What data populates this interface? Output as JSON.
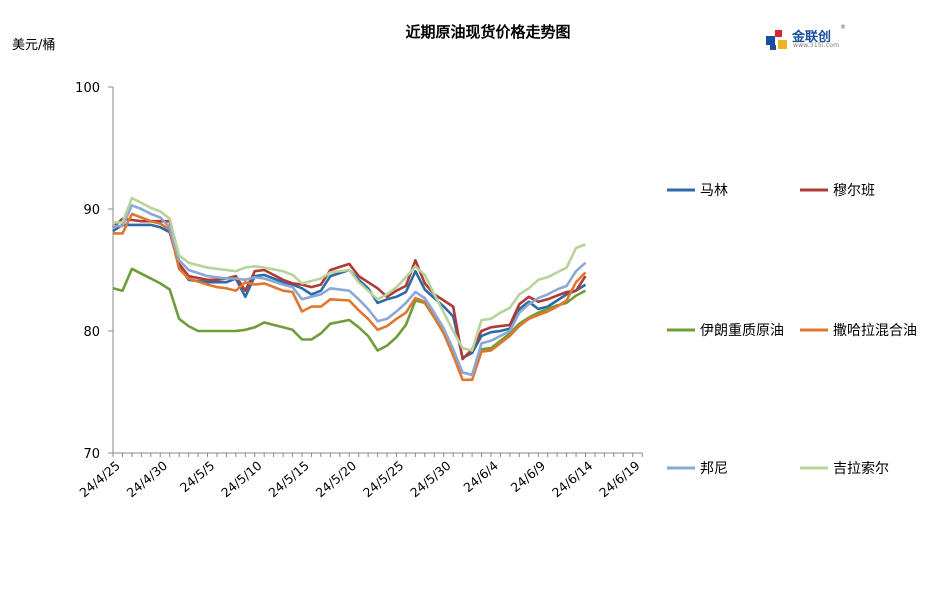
{
  "header": {
    "title": "近期原油现货价格走势图",
    "unit": "美元/桶"
  },
  "logo": {
    "name": "金联创",
    "sub": "www.315i.com",
    "reg": "®",
    "colors": {
      "primary": "#1a4f9c",
      "accent_red": "#d9232d",
      "accent_yellow": "#f0b323"
    }
  },
  "chart_data": {
    "type": "line",
    "ylim": [
      70,
      100
    ],
    "yticks": [
      70,
      80,
      90,
      100
    ],
    "grid": false,
    "legend_position": "right",
    "x_tick_labels": [
      "24/4/25",
      "24/4/30",
      "24/5/5",
      "24/5/10",
      "24/5/15",
      "24/5/20",
      "24/5/25",
      "24/5/30",
      "24/6/4",
      "24/6/9",
      "24/6/14",
      "24/6/19"
    ],
    "x_range_days": [
      0,
      56
    ],
    "series": [
      {
        "name": "马林",
        "color": "#2e6aa5",
        "points": [
          [
            0,
            88.2
          ],
          [
            1,
            88.7
          ],
          [
            3,
            88.7
          ],
          [
            4,
            88.7
          ],
          [
            5,
            88.5
          ],
          [
            6,
            88.1
          ],
          [
            7,
            85.3
          ],
          [
            8,
            84.2
          ],
          [
            10,
            84.0
          ],
          [
            11,
            84.0
          ],
          [
            12,
            84.0
          ],
          [
            13,
            84.3
          ],
          [
            14,
            82.8
          ],
          [
            15,
            84.5
          ],
          [
            16,
            84.6
          ],
          [
            18,
            84.0
          ],
          [
            19,
            83.8
          ],
          [
            20,
            83.5
          ],
          [
            21,
            83.0
          ],
          [
            22,
            83.3
          ],
          [
            23,
            84.5
          ],
          [
            25,
            85.0
          ],
          [
            26,
            84.2
          ],
          [
            27,
            83.5
          ],
          [
            28,
            82.3
          ],
          [
            29,
            82.6
          ],
          [
            30,
            82.8
          ],
          [
            31,
            83.2
          ],
          [
            32,
            84.9
          ],
          [
            33,
            83.4
          ],
          [
            34,
            82.7
          ],
          [
            35,
            82.0
          ],
          [
            36,
            81.2
          ],
          [
            37,
            77.8
          ],
          [
            38,
            78.2
          ],
          [
            39,
            79.6
          ],
          [
            40,
            79.9
          ],
          [
            41,
            80.0
          ],
          [
            42,
            80.2
          ],
          [
            43,
            81.8
          ],
          [
            44,
            82.4
          ],
          [
            45,
            81.8
          ],
          [
            46,
            82.0
          ],
          [
            47,
            82.5
          ],
          [
            48,
            83.0
          ],
          [
            49,
            83.3
          ],
          [
            50,
            83.8
          ]
        ]
      },
      {
        "name": "穆尔班",
        "color": "#b03a37",
        "points": [
          [
            0,
            88.5
          ],
          [
            1,
            89.2
          ],
          [
            3,
            89.0
          ],
          [
            4,
            89.0
          ],
          [
            5,
            89.0
          ],
          [
            6,
            89.0
          ],
          [
            7,
            85.5
          ],
          [
            8,
            84.5
          ],
          [
            10,
            84.2
          ],
          [
            11,
            84.2
          ],
          [
            12,
            84.3
          ],
          [
            13,
            84.5
          ],
          [
            14,
            83.3
          ],
          [
            15,
            84.9
          ],
          [
            16,
            85.0
          ],
          [
            18,
            84.2
          ],
          [
            19,
            83.9
          ],
          [
            20,
            83.8
          ],
          [
            21,
            83.6
          ],
          [
            22,
            83.8
          ],
          [
            23,
            85.0
          ],
          [
            25,
            85.5
          ],
          [
            26,
            84.5
          ],
          [
            27,
            84.0
          ],
          [
            28,
            83.5
          ],
          [
            29,
            82.8
          ],
          [
            30,
            83.3
          ],
          [
            31,
            83.7
          ],
          [
            32,
            85.8
          ],
          [
            33,
            83.9
          ],
          [
            34,
            83.0
          ],
          [
            35,
            82.5
          ],
          [
            36,
            82.0
          ],
          [
            37,
            77.7
          ],
          [
            38,
            78.5
          ],
          [
            39,
            80.0
          ],
          [
            40,
            80.3
          ],
          [
            41,
            80.4
          ],
          [
            42,
            80.5
          ],
          [
            43,
            82.2
          ],
          [
            44,
            82.8
          ],
          [
            45,
            82.4
          ],
          [
            46,
            82.6
          ],
          [
            47,
            82.9
          ],
          [
            48,
            83.2
          ],
          [
            49,
            83.3
          ],
          [
            50,
            84.5
          ]
        ]
      },
      {
        "name": "伊朗重质原油",
        "color": "#6f9d3a",
        "points": [
          [
            0,
            83.5
          ],
          [
            1,
            83.3
          ],
          [
            2,
            85.1
          ],
          [
            3,
            84.7
          ],
          [
            4,
            84.3
          ],
          [
            5,
            83.9
          ],
          [
            6,
            83.4
          ],
          [
            7,
            81.0
          ],
          [
            8,
            80.4
          ],
          [
            9,
            80.0
          ],
          [
            10,
            80.0
          ],
          [
            11,
            80.0
          ],
          [
            12,
            80.0
          ],
          [
            13,
            80.0
          ],
          [
            14,
            80.1
          ],
          [
            15,
            80.3
          ],
          [
            16,
            80.7
          ],
          [
            18,
            80.3
          ],
          [
            19,
            80.1
          ],
          [
            20,
            79.3
          ],
          [
            21,
            79.3
          ],
          [
            22,
            79.8
          ],
          [
            23,
            80.6
          ],
          [
            25,
            80.9
          ],
          [
            26,
            80.3
          ],
          [
            27,
            79.6
          ],
          [
            28,
            78.4
          ],
          [
            29,
            78.8
          ],
          [
            30,
            79.5
          ],
          [
            31,
            80.5
          ],
          [
            32,
            82.5
          ],
          [
            33,
            82.3
          ],
          [
            34,
            81.1
          ],
          [
            35,
            79.8
          ],
          [
            36,
            78.0
          ],
          [
            37,
            76.6
          ],
          [
            38,
            76.4
          ],
          [
            39,
            78.5
          ],
          [
            40,
            78.6
          ],
          [
            41,
            79.2
          ],
          [
            42,
            79.8
          ],
          [
            43,
            80.6
          ],
          [
            44,
            81.1
          ],
          [
            45,
            81.5
          ],
          [
            46,
            81.8
          ],
          [
            47,
            82.1
          ],
          [
            48,
            82.3
          ],
          [
            49,
            82.9
          ],
          [
            50,
            83.3
          ]
        ]
      },
      {
        "name": "撒哈拉混合油",
        "color": "#e1772f",
        "points": [
          [
            0,
            88.0
          ],
          [
            1,
            88.0
          ],
          [
            2,
            89.6
          ],
          [
            3,
            89.3
          ],
          [
            4,
            89.0
          ],
          [
            5,
            88.8
          ],
          [
            6,
            88.3
          ],
          [
            7,
            85.1
          ],
          [
            8,
            84.3
          ],
          [
            10,
            83.8
          ],
          [
            11,
            83.6
          ],
          [
            12,
            83.5
          ],
          [
            13,
            83.3
          ],
          [
            14,
            84.0
          ],
          [
            15,
            83.8
          ],
          [
            16,
            83.9
          ],
          [
            18,
            83.3
          ],
          [
            19,
            83.2
          ],
          [
            20,
            81.6
          ],
          [
            21,
            82.0
          ],
          [
            22,
            82.0
          ],
          [
            23,
            82.6
          ],
          [
            25,
            82.5
          ],
          [
            26,
            81.7
          ],
          [
            27,
            81.0
          ],
          [
            28,
            80.1
          ],
          [
            29,
            80.4
          ],
          [
            30,
            81.0
          ],
          [
            31,
            81.5
          ],
          [
            32,
            82.7
          ],
          [
            33,
            82.4
          ],
          [
            34,
            81.2
          ],
          [
            35,
            79.8
          ],
          [
            36,
            78.0
          ],
          [
            37,
            76.0
          ],
          [
            38,
            76.0
          ],
          [
            39,
            78.3
          ],
          [
            40,
            78.4
          ],
          [
            41,
            79.0
          ],
          [
            42,
            79.6
          ],
          [
            43,
            80.4
          ],
          [
            44,
            81.0
          ],
          [
            45,
            81.3
          ],
          [
            46,
            81.6
          ],
          [
            47,
            82.0
          ],
          [
            48,
            82.5
          ],
          [
            49,
            84.0
          ],
          [
            50,
            84.8
          ]
        ]
      },
      {
        "name": "邦尼",
        "color": "#8ba8d4",
        "points": [
          [
            0,
            88.6
          ],
          [
            1,
            88.6
          ],
          [
            2,
            90.3
          ],
          [
            3,
            90.0
          ],
          [
            4,
            89.6
          ],
          [
            5,
            89.3
          ],
          [
            6,
            88.5
          ],
          [
            7,
            85.8
          ],
          [
            8,
            85.0
          ],
          [
            10,
            84.5
          ],
          [
            11,
            84.4
          ],
          [
            12,
            84.3
          ],
          [
            13,
            84.3
          ],
          [
            14,
            84.2
          ],
          [
            15,
            84.4
          ],
          [
            16,
            84.3
          ],
          [
            18,
            83.8
          ],
          [
            19,
            83.6
          ],
          [
            20,
            82.6
          ],
          [
            21,
            82.8
          ],
          [
            22,
            83.0
          ],
          [
            23,
            83.5
          ],
          [
            25,
            83.3
          ],
          [
            26,
            82.6
          ],
          [
            27,
            81.8
          ],
          [
            28,
            80.8
          ],
          [
            29,
            81.0
          ],
          [
            30,
            81.6
          ],
          [
            31,
            82.3
          ],
          [
            32,
            83.2
          ],
          [
            33,
            82.7
          ],
          [
            34,
            81.5
          ],
          [
            35,
            80.2
          ],
          [
            36,
            78.5
          ],
          [
            37,
            76.6
          ],
          [
            38,
            76.4
          ],
          [
            39,
            79.0
          ],
          [
            40,
            79.2
          ],
          [
            41,
            79.6
          ],
          [
            42,
            80.0
          ],
          [
            43,
            81.5
          ],
          [
            44,
            82.2
          ],
          [
            45,
            82.7
          ],
          [
            46,
            83.0
          ],
          [
            47,
            83.4
          ],
          [
            48,
            83.7
          ],
          [
            49,
            84.9
          ],
          [
            50,
            85.6
          ]
        ]
      },
      {
        "name": "吉拉索尔",
        "color": "#b8d39a",
        "points": [
          [
            0,
            88.9
          ],
          [
            1,
            88.9
          ],
          [
            2,
            90.9
          ],
          [
            3,
            90.5
          ],
          [
            4,
            90.1
          ],
          [
            5,
            89.8
          ],
          [
            6,
            89.2
          ],
          [
            7,
            86.2
          ],
          [
            8,
            85.6
          ],
          [
            10,
            85.2
          ],
          [
            11,
            85.1
          ],
          [
            12,
            85.0
          ],
          [
            13,
            84.9
          ],
          [
            14,
            85.2
          ],
          [
            15,
            85.3
          ],
          [
            16,
            85.2
          ],
          [
            18,
            84.9
          ],
          [
            19,
            84.6
          ],
          [
            20,
            83.9
          ],
          [
            21,
            84.1
          ],
          [
            22,
            84.3
          ],
          [
            23,
            84.8
          ],
          [
            25,
            85.0
          ],
          [
            26,
            84.0
          ],
          [
            27,
            83.3
          ],
          [
            28,
            82.6
          ],
          [
            29,
            83.0
          ],
          [
            30,
            83.6
          ],
          [
            31,
            84.4
          ],
          [
            32,
            85.3
          ],
          [
            33,
            84.6
          ],
          [
            34,
            83.0
          ],
          [
            35,
            81.5
          ],
          [
            36,
            80.0
          ],
          [
            37,
            78.6
          ],
          [
            38,
            78.4
          ],
          [
            39,
            80.9
          ],
          [
            40,
            81.0
          ],
          [
            41,
            81.5
          ],
          [
            42,
            81.9
          ],
          [
            43,
            83.0
          ],
          [
            44,
            83.5
          ],
          [
            45,
            84.2
          ],
          [
            46,
            84.4
          ],
          [
            47,
            84.8
          ],
          [
            48,
            85.2
          ],
          [
            49,
            86.8
          ],
          [
            50,
            87.1
          ]
        ]
      }
    ]
  }
}
